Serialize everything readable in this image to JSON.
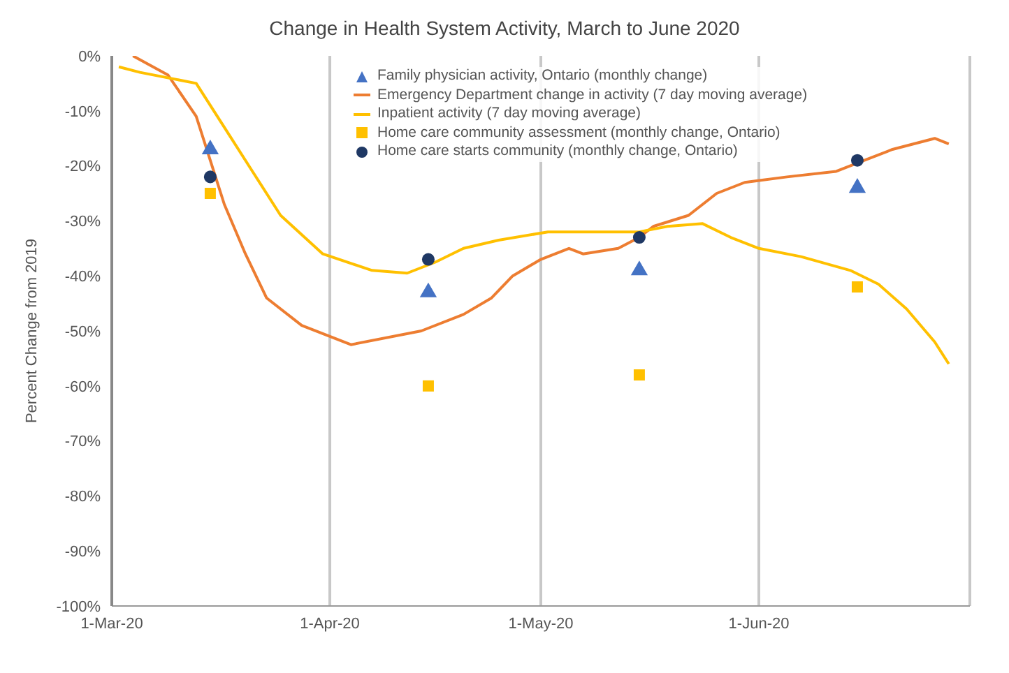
{
  "chart_data": {
    "type": "line",
    "title": "Change in Health System Activity, March to June 2020",
    "ylabel": "Percent Change from 2019",
    "xlim": [
      "2020-03-01",
      "2020-07-01"
    ],
    "xticks": [
      {
        "value": "2020-03-01",
        "label": "1-Mar-20"
      },
      {
        "value": "2020-04-01",
        "label": "1-Apr-20"
      },
      {
        "value": "2020-05-01",
        "label": "1-May-20"
      },
      {
        "value": "2020-06-01",
        "label": "1-Jun-20"
      },
      {
        "value": "2020-07-01",
        "label": null
      }
    ],
    "ylim": [
      -100,
      0
    ],
    "yticks": [
      {
        "value": 0,
        "label": "0%"
      },
      {
        "value": -10,
        "label": "-10%"
      },
      {
        "value": -20,
        "label": "-20%"
      },
      {
        "value": -30,
        "label": "-30%"
      },
      {
        "value": -40,
        "label": "-40%"
      },
      {
        "value": -50,
        "label": "-50%"
      },
      {
        "value": -60,
        "label": "-60%"
      },
      {
        "value": -70,
        "label": "-70%"
      },
      {
        "value": -80,
        "label": "-80%"
      },
      {
        "value": -90,
        "label": "-90%"
      },
      {
        "value": -100,
        "label": "-100%"
      }
    ],
    "grid": "x",
    "legend": "top right",
    "series": [
      {
        "name": "Family physician activity, Ontario (monthly change)",
        "type": "scatter",
        "marker": "triangle",
        "color": "#4472c4",
        "x": [
          "2020-03-15",
          "2020-04-15",
          "2020-05-15",
          "2020-06-15"
        ],
        "values": [
          -17,
          -43,
          -39,
          -24
        ]
      },
      {
        "name": "Emergency Department change in activity (7 day moving average)",
        "marker": "none",
        "color": "#ed7d31",
        "x": [
          "2020-03-04",
          "2020-03-09",
          "2020-03-13",
          "2020-03-15",
          "2020-03-17",
          "2020-03-20",
          "2020-03-23",
          "2020-03-28",
          "2020-04-04",
          "2020-04-14",
          "2020-04-20",
          "2020-04-24",
          "2020-04-27",
          "2020-05-01",
          "2020-05-05",
          "2020-05-07",
          "2020-05-12",
          "2020-05-15",
          "2020-05-17",
          "2020-05-22",
          "2020-05-26",
          "2020-05-30",
          "2020-06-05",
          "2020-06-12",
          "2020-06-16",
          "2020-06-20",
          "2020-06-26",
          "2020-06-28"
        ],
        "values": [
          0,
          -3.5,
          -11,
          -19,
          -27,
          -36,
          -44,
          -49,
          -52.5,
          -50,
          -47,
          -44,
          -40,
          -37,
          -35,
          -36,
          -35,
          -33,
          -31,
          -29,
          -25,
          -23,
          -22,
          -21,
          -19,
          -17,
          -15,
          -16
        ]
      },
      {
        "name": "Inpatient activity (7 day moving average)",
        "marker": "none",
        "color": "#ffc000",
        "x": [
          "2020-03-02",
          "2020-03-05",
          "2020-03-13",
          "2020-03-17",
          "2020-03-21",
          "2020-03-25",
          "2020-03-31",
          "2020-04-07",
          "2020-04-12",
          "2020-04-16",
          "2020-04-20",
          "2020-04-25",
          "2020-05-02",
          "2020-05-09",
          "2020-05-15",
          "2020-05-19",
          "2020-05-24",
          "2020-05-28",
          "2020-06-01",
          "2020-06-07",
          "2020-06-14",
          "2020-06-18",
          "2020-06-22",
          "2020-06-26",
          "2020-06-28"
        ],
        "values": [
          -2,
          -3,
          -5,
          -13,
          -21,
          -29,
          -36,
          -39,
          -39.5,
          -37.5,
          -35,
          -33.5,
          -32,
          -32,
          -32,
          -31,
          -30.5,
          -33,
          -35,
          -36.5,
          -39,
          -41.5,
          -46,
          -52,
          -56
        ]
      },
      {
        "name": "Home care community assessment (monthly change, Ontario)",
        "type": "scatter",
        "marker": "square",
        "color": "#ffc000",
        "x": [
          "2020-03-15",
          "2020-04-15",
          "2020-05-15",
          "2020-06-15"
        ],
        "values": [
          -25,
          -60,
          -58,
          -42
        ]
      },
      {
        "name": "Home care starts community (monthly change, Ontario)",
        "type": "scatter",
        "marker": "circle",
        "color": "#1f3864",
        "x": [
          "2020-03-15",
          "2020-04-15",
          "2020-05-15",
          "2020-06-15"
        ],
        "values": [
          -22,
          -37,
          -33,
          -19
        ]
      }
    ]
  }
}
